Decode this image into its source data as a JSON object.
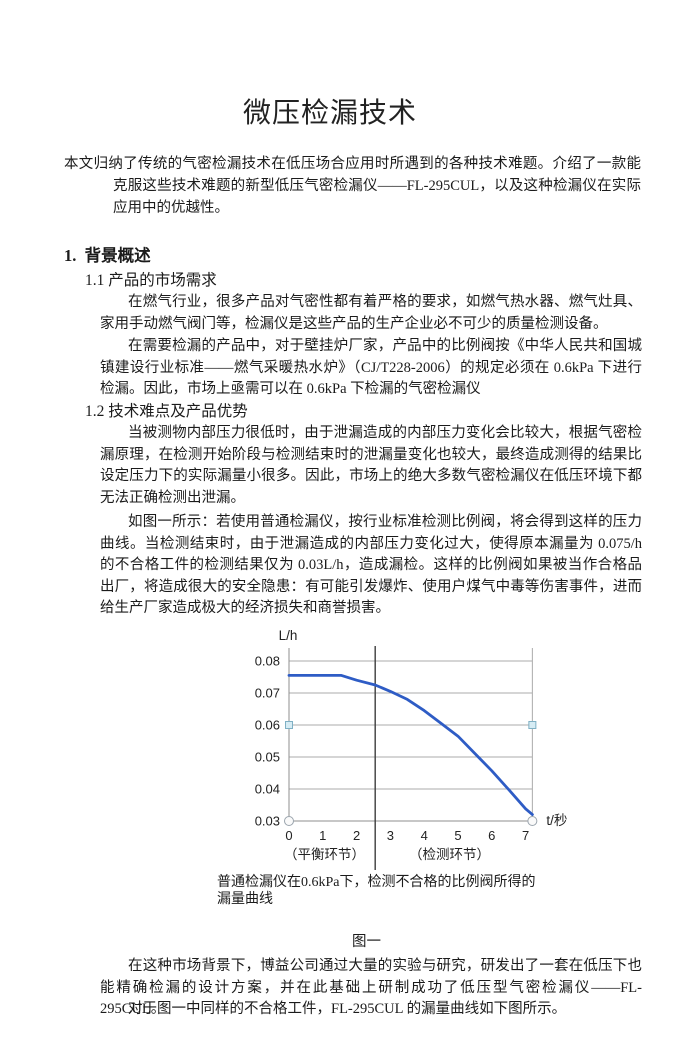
{
  "doc": {
    "title": "微压检漏技术",
    "abstract": "本文归纳了传统的气密检漏技术在低压场合应用时所遇到的各种技术难题。介绍了一款能克服这些技术难题的新型低压气密检漏仪——FL-295CUL，以及这种检漏仪在实际应用中的优越性。",
    "section1": {
      "heading": "1.  背景概述",
      "sub1": {
        "heading": "1.1 产品的市场需求",
        "paragraphs": [
          "在燃气行业，很多产品对气密性都有着严格的要求，如燃气热水器、燃气灶具、家用手动燃气阀门等，检漏仪是这些产品的生产企业必不可少的质量检测设备。",
          "在需要检漏的产品中，对于壁挂炉厂家，产品中的比例阀按《中华人民共和国城镇建设行业标准——燃气采暖热水炉》（CJ/T228-2006）的规定必须在 0.6kPa 下进行检漏。因此，市场上亟需可以在 0.6kPa 下检漏的气密检漏仪"
        ]
      },
      "sub2": {
        "heading": "1.2 技术难点及产品优势",
        "paragraphs": [
          "当被测物内部压力很低时，由于泄漏造成的内部压力变化会比较大，根据气密检漏原理，在检测开始阶段与检测结束时的泄漏量变化也较大，最终造成测得的结果比设定压力下的实际漏量小很多。因此，市场上的绝大多数气密检漏仪在低压环境下都无法正确检测出泄漏。",
          "如图一所示：若使用普通检漏仪，按行业标准检测比例阀，将会得到这样的压力曲线。当检测结束时，由于泄漏造成的内部压力变化过大，使得原本漏量为 0.075/h 的不合格工件的检测结果仅为 0.03L/h，造成漏检。这样的比例阀如果被当作合格品出厂，将造成很大的安全隐患：有可能引发爆炸、使用户煤气中毒等伤害事件，进而给生产厂家造成极大的经济损失和商誉损害。"
        ]
      }
    },
    "figure": {
      "caption_line1": "普通检漏仪在0.6kPa下，检测不合格的比例阀所得的",
      "caption_line2": "漏量曲线",
      "label": "图一"
    },
    "closing_paragraphs": [
      "在这种市场背景下，博益公司通过大量的实验与研究，研发出了一套在低压下也能精确检漏的设计方案，并在此基础上研制成功了低压型气密检漏仪——FL-295CUL。",
      "对于图一中同样的不合格工件，FL-295CUL 的漏量曲线如下图所示。"
    ]
  },
  "chart_data": {
    "type": "line",
    "title": "",
    "ylabel": "L/h",
    "xlabel": "t/秒",
    "xlim": [
      0,
      7.2
    ],
    "ylim": [
      0.03,
      0.08
    ],
    "x_ticks": [
      "0",
      "1",
      "2",
      "3",
      "4",
      "5",
      "6",
      "7"
    ],
    "y_ticks": [
      "0.03",
      "0.04",
      "0.05",
      "0.06",
      "0.07",
      "0.08"
    ],
    "grid": true,
    "legend": "none",
    "divider_x": 2.55,
    "phases": [
      {
        "label": "（平衡环节）",
        "center_x": 1.05
      },
      {
        "label": "（检测环节）",
        "center_x": 4.75
      }
    ],
    "series": [
      {
        "name": "漏量曲线",
        "color": "#2e5cc5",
        "x": [
          0,
          1.55,
          2.0,
          2.55,
          3.0,
          3.5,
          4.0,
          4.5,
          5.0,
          5.6,
          6.0,
          6.5,
          7.0,
          7.2
        ],
        "y": [
          0.0755,
          0.0755,
          0.074,
          0.0725,
          0.0705,
          0.068,
          0.0645,
          0.0605,
          0.0565,
          0.05,
          0.0457,
          0.0398,
          0.0338,
          0.032
        ]
      }
    ],
    "colors": {
      "grid": "#ababab",
      "axis": "#8f8f8f",
      "divider": "#3d3d3d",
      "handle_square": "#7fb0c4",
      "handle_circle": "#9aa4ad"
    }
  }
}
